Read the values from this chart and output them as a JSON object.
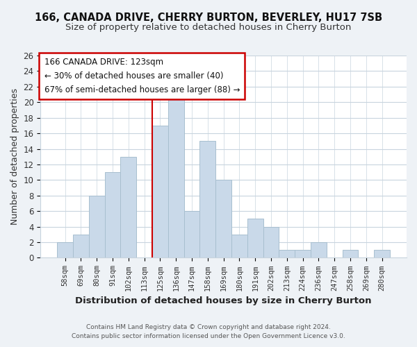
{
  "title": "166, CANADA DRIVE, CHERRY BURTON, BEVERLEY, HU17 7SB",
  "subtitle": "Size of property relative to detached houses in Cherry Burton",
  "xlabel": "Distribution of detached houses by size in Cherry Burton",
  "ylabel": "Number of detached properties",
  "bar_color": "#c9d9e9",
  "bar_edge_color": "#a8bfcf",
  "categories": [
    "58sqm",
    "69sqm",
    "80sqm",
    "91sqm",
    "102sqm",
    "113sqm",
    "125sqm",
    "136sqm",
    "147sqm",
    "158sqm",
    "169sqm",
    "180sqm",
    "191sqm",
    "202sqm",
    "213sqm",
    "224sqm",
    "236sqm",
    "247sqm",
    "258sqm",
    "269sqm",
    "280sqm"
  ],
  "values": [
    2,
    3,
    8,
    11,
    13,
    0,
    17,
    21,
    6,
    15,
    10,
    3,
    5,
    4,
    1,
    1,
    2,
    0,
    1,
    0,
    1
  ],
  "ylim": [
    0,
    26
  ],
  "yticks": [
    0,
    2,
    4,
    6,
    8,
    10,
    12,
    14,
    16,
    18,
    20,
    22,
    24,
    26
  ],
  "vline_index": 6,
  "vline_color": "#cc0000",
  "annotation_title": "166 CANADA DRIVE: 123sqm",
  "annotation_line1": "← 30% of detached houses are smaller (40)",
  "annotation_line2": "67% of semi-detached houses are larger (88) →",
  "footer1": "Contains HM Land Registry data © Crown copyright and database right 2024.",
  "footer2": "Contains public sector information licensed under the Open Government Licence v3.0.",
  "background_color": "#eef2f6",
  "plot_background": "#ffffff",
  "grid_color": "#c8d4de",
  "title_fontsize": 10.5,
  "subtitle_fontsize": 9.5,
  "footer_fontsize": 6.5
}
